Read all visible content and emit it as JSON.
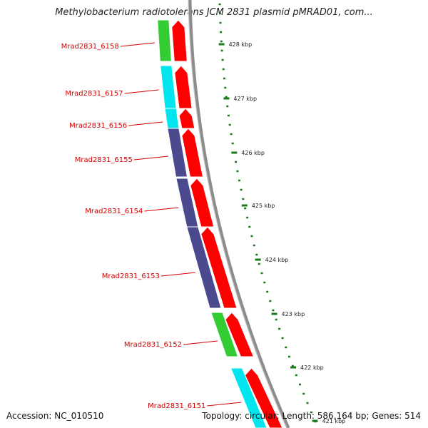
{
  "title": "Methylobacterium radiotolerans JCM 2831 plasmid pMRAD01, com...",
  "footer": {
    "accession": "Accession: NC_010510",
    "summary": "Topology: circular; Length: 586,164 bp; Genes: 514"
  },
  "colors": {
    "gene_label": "#d40000",
    "tick": "#1a7a1a",
    "backbone": "#8c8c8c",
    "strand_arrow": "#ff0000",
    "cyan": "#00e5ee",
    "green": "#33cc33",
    "purple": "#4b4a8f"
  },
  "scale_ticks": [
    {
      "label": "428 kbp"
    },
    {
      "label": "427 kbp"
    },
    {
      "label": "426 kbp"
    },
    {
      "label": "425 kbp"
    },
    {
      "label": "424 kbp"
    },
    {
      "label": "423 kbp"
    },
    {
      "label": "422 kbp"
    },
    {
      "label": "421 kbp"
    }
  ],
  "genes": [
    {
      "label": "Mrad2831_6158",
      "color": "green"
    },
    {
      "label": "Mrad2831_6157",
      "color": "cyan"
    },
    {
      "label": "Mrad2831_6156",
      "color": "cyan"
    },
    {
      "label": "Mrad2831_6155",
      "color": "purple"
    },
    {
      "label": "Mrad2831_6154",
      "color": "purple"
    },
    {
      "label": "Mrad2831_6153",
      "color": "purple"
    },
    {
      "label": "Mrad2831_6152",
      "color": "green"
    },
    {
      "label": "Mrad2831_6151",
      "color": "cyan"
    }
  ]
}
